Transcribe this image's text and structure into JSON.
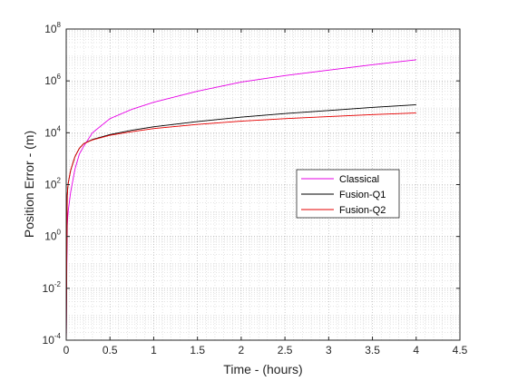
{
  "chart_data": {
    "type": "line",
    "xlabel": "Time - (hours)",
    "ylabel": "Position Error - (m)",
    "xlim": [
      0,
      4.5
    ],
    "ylim": [
      0.0001,
      100000000
    ],
    "yscale": "log",
    "x_ticks": [
      {
        "value": 0,
        "label": "0"
      },
      {
        "value": 0.5,
        "label": "0.5"
      },
      {
        "value": 1,
        "label": "1"
      },
      {
        "value": 1.5,
        "label": "1.5"
      },
      {
        "value": 2,
        "label": "2"
      },
      {
        "value": 2.5,
        "label": "2.5"
      },
      {
        "value": 3,
        "label": "3"
      },
      {
        "value": 3.5,
        "label": "3.5"
      },
      {
        "value": 4,
        "label": "4"
      },
      {
        "value": 4.5,
        "label": "4.5"
      }
    ],
    "y_ticks": [
      {
        "value": 0.0001,
        "base": "10",
        "exp": "-4"
      },
      {
        "value": 0.01,
        "base": "10",
        "exp": "-2"
      },
      {
        "value": 1,
        "base": "10",
        "exp": "0"
      },
      {
        "value": 100,
        "base": "10",
        "exp": "2"
      },
      {
        "value": 10000,
        "base": "10",
        "exp": "4"
      },
      {
        "value": 1000000,
        "base": "10",
        "exp": "6"
      },
      {
        "value": 100000000,
        "base": "10",
        "exp": "8"
      }
    ],
    "grid": true,
    "minor_grid": true,
    "legend_position": "center-right",
    "x": [
      0.01,
      0.02,
      0.05,
      0.1,
      0.15,
      0.2,
      0.3,
      0.5,
      0.75,
      1,
      1.5,
      2,
      2.5,
      3,
      3.5,
      4
    ],
    "series": [
      {
        "name": "Classical",
        "color": "#e600e6",
        "values": [
          2,
          8,
          50,
          400,
          1500,
          3000,
          10000,
          35000,
          80000,
          150000,
          400000,
          900000,
          1600000,
          2600000,
          4200000,
          6500000
        ]
      },
      {
        "name": "Fusion-Q1",
        "color": "#000000",
        "values": [
          30,
          100,
          350,
          1200,
          2500,
          3800,
          5500,
          8500,
          12500,
          17000,
          27000,
          40000,
          55000,
          72000,
          95000,
          120000
        ]
      },
      {
        "name": "Fusion-Q2",
        "color": "#e60000",
        "values": [
          30,
          100,
          350,
          1200,
          2500,
          3800,
          5300,
          8000,
          11000,
          14500,
          21000,
          28000,
          35000,
          42000,
          50000,
          58000
        ]
      }
    ]
  }
}
